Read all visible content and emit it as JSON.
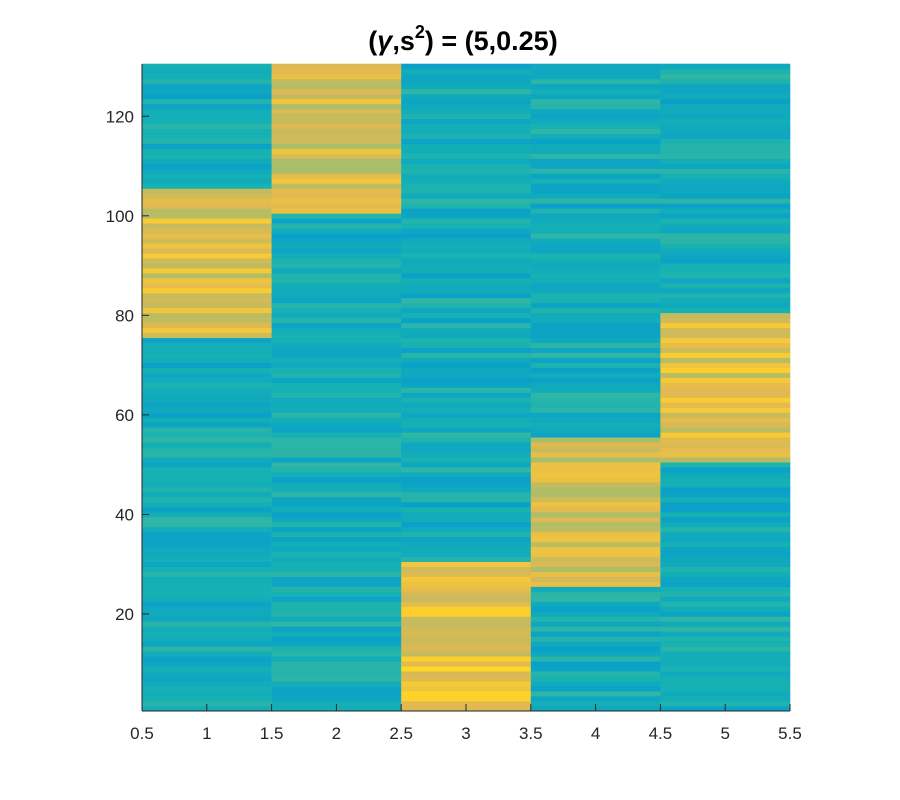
{
  "chart_data": {
    "type": "heatmap",
    "title": "(γ,s²) = (5,0.25)",
    "title_parts": {
      "open": "(",
      "gamma": "γ",
      "comma": ",s",
      "sup": "2",
      "rest": ") = (5,0.25)"
    },
    "xlabel": "",
    "ylabel": "",
    "xlim": [
      0.5,
      5.5
    ],
    "ylim": [
      0.5,
      130.5
    ],
    "x_ticks": [
      0.5,
      1,
      1.5,
      2,
      2.5,
      3,
      3.5,
      4,
      4.5,
      5,
      5.5
    ],
    "x_tick_labels": [
      "0.5",
      "1",
      "1.5",
      "2",
      "2.5",
      "3",
      "3.5",
      "4",
      "4.5",
      "5",
      "5.5"
    ],
    "y_ticks": [
      20,
      40,
      60,
      80,
      100,
      120
    ],
    "y_tick_labels": [
      "20",
      "40",
      "60",
      "80",
      "100",
      "120"
    ],
    "colormap": "parula",
    "color_range": [
      0,
      1
    ],
    "columns": [
      1,
      2,
      3,
      4,
      5
    ],
    "rows": 130,
    "high_blocks": [
      {
        "column": 1,
        "row_from": 76,
        "row_to": 105,
        "value": 0.82
      },
      {
        "column": 2,
        "row_from": 101,
        "row_to": 130,
        "value": 0.8
      },
      {
        "column": 3,
        "row_from": 1,
        "row_to": 30,
        "value": 0.85
      },
      {
        "column": 4,
        "row_from": 26,
        "row_to": 55,
        "value": 0.8
      },
      {
        "column": 5,
        "row_from": 51,
        "row_to": 80,
        "value": 0.83
      }
    ],
    "background_value": 0.5,
    "colors": {
      "dark_blue": "#3b9ee8",
      "teal": "#18b3c6",
      "green_teal": "#4cbf9a",
      "orange": "#f7b93a",
      "yellow": "#f9e52a"
    }
  }
}
